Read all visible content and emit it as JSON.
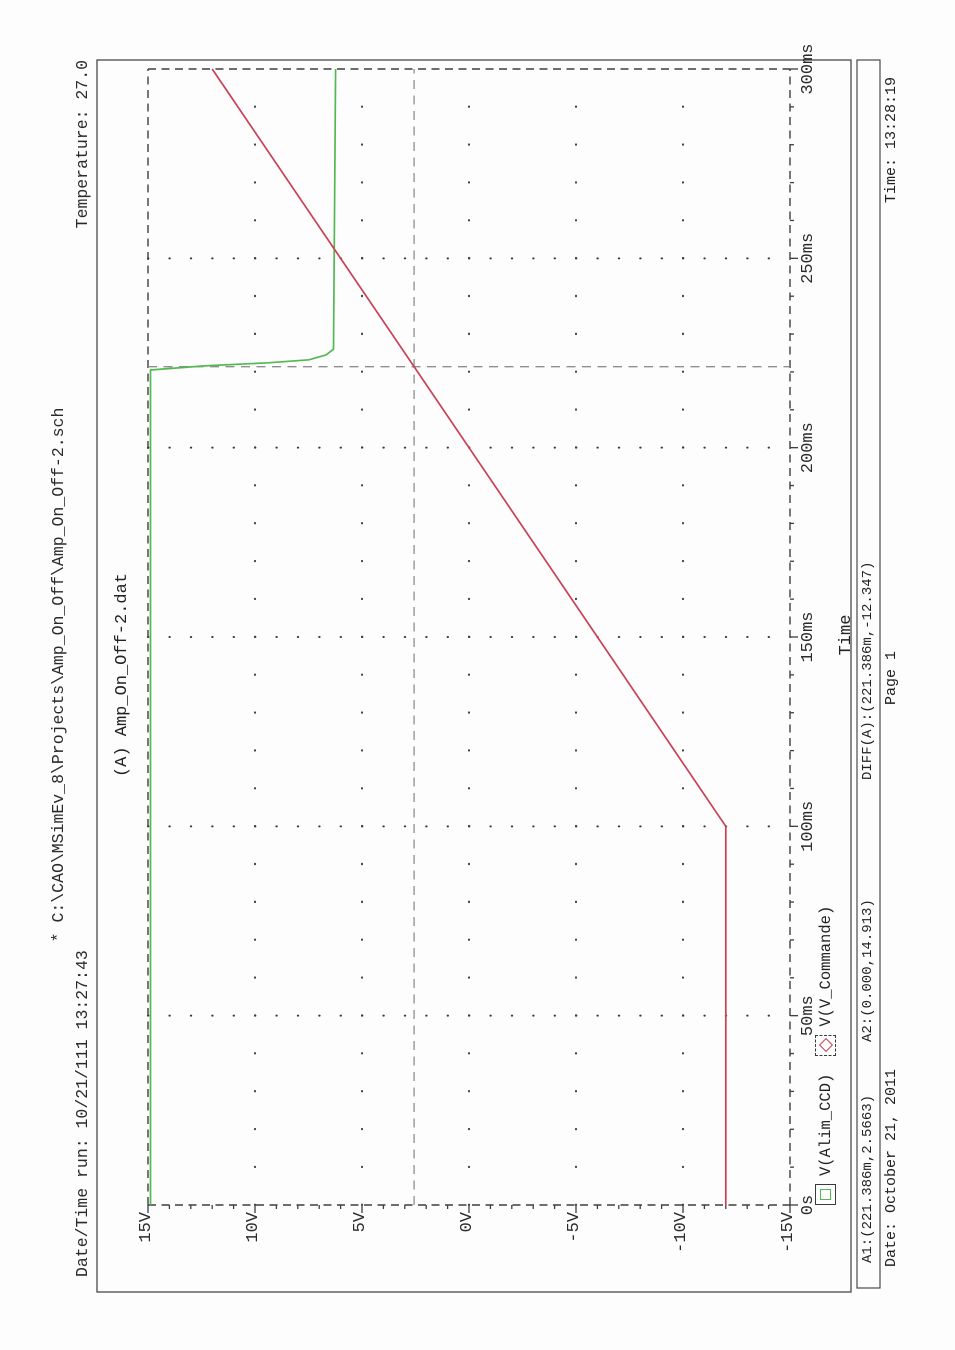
{
  "page": {
    "header_path": "* C:\\CAO\\MSimEv_8\\Projects\\Amp_On_Off\\Amp_On_Off-2.sch",
    "date_time_run": "Date/Time run: 10/21/111 13:27:43",
    "temperature": "Temperature: 27.0",
    "footer": {
      "date": "Date: October 21, 2011",
      "page": "Page 1",
      "time": "Time: 13:28:19"
    }
  },
  "cursor_readout": {
    "a1": "A1:(221.386m,2.5663)",
    "a2": "A2:(0.000,14.913)",
    "diff": "DIFF(A):(221.386m,-12.347)"
  },
  "chart_data": {
    "type": "line",
    "title": "(A) Amp_On_Off-2.dat",
    "xlabel": "Time",
    "ylabel": "",
    "xlim_ms": [
      0,
      300
    ],
    "ylim_v": [
      -15,
      15
    ],
    "grid": "dotted",
    "x_ticks": [
      {
        "ms": 0,
        "label": "0s"
      },
      {
        "ms": 50,
        "label": "50ms"
      },
      {
        "ms": 100,
        "label": "100ms"
      },
      {
        "ms": 150,
        "label": "150ms"
      },
      {
        "ms": 200,
        "label": "200ms"
      },
      {
        "ms": 250,
        "label": "250ms"
      },
      {
        "ms": 300,
        "label": "300ms"
      }
    ],
    "y_ticks": [
      {
        "v": 15,
        "label": "15V"
      },
      {
        "v": 10,
        "label": "10V"
      },
      {
        "v": 5,
        "label": "5V"
      },
      {
        "v": 0,
        "label": "0V"
      },
      {
        "v": -5,
        "label": "-5V"
      },
      {
        "v": -10,
        "label": "-10V"
      },
      {
        "v": -15,
        "label": "-15V"
      }
    ],
    "minor_tick_ms": 10,
    "minor_tick_v": 1,
    "series": [
      {
        "name": "V(Alim_CCD)",
        "color": "#52b852",
        "marker": "square",
        "points": [
          [
            0,
            15
          ],
          [
            220.5,
            15
          ],
          [
            221.6,
            12.5
          ],
          [
            222.4,
            9.5
          ],
          [
            223.2,
            7.6
          ],
          [
            224.5,
            6.8
          ],
          [
            226,
            6.45
          ],
          [
            300,
            6.35
          ]
        ]
      },
      {
        "name": "V(V_Commande)",
        "color": "#c84055",
        "marker": "diamond",
        "points": [
          [
            0,
            -12
          ],
          [
            100,
            -12
          ],
          [
            300,
            12
          ]
        ]
      }
    ],
    "cursors": [
      {
        "id": "A1",
        "t_ms": 221.386,
        "v": 2.5663,
        "trace": "V(V_Commande)"
      },
      {
        "id": "A2",
        "t_ms": 0.0,
        "v": 14.913,
        "trace": "V(Alim_CCD)"
      }
    ]
  }
}
